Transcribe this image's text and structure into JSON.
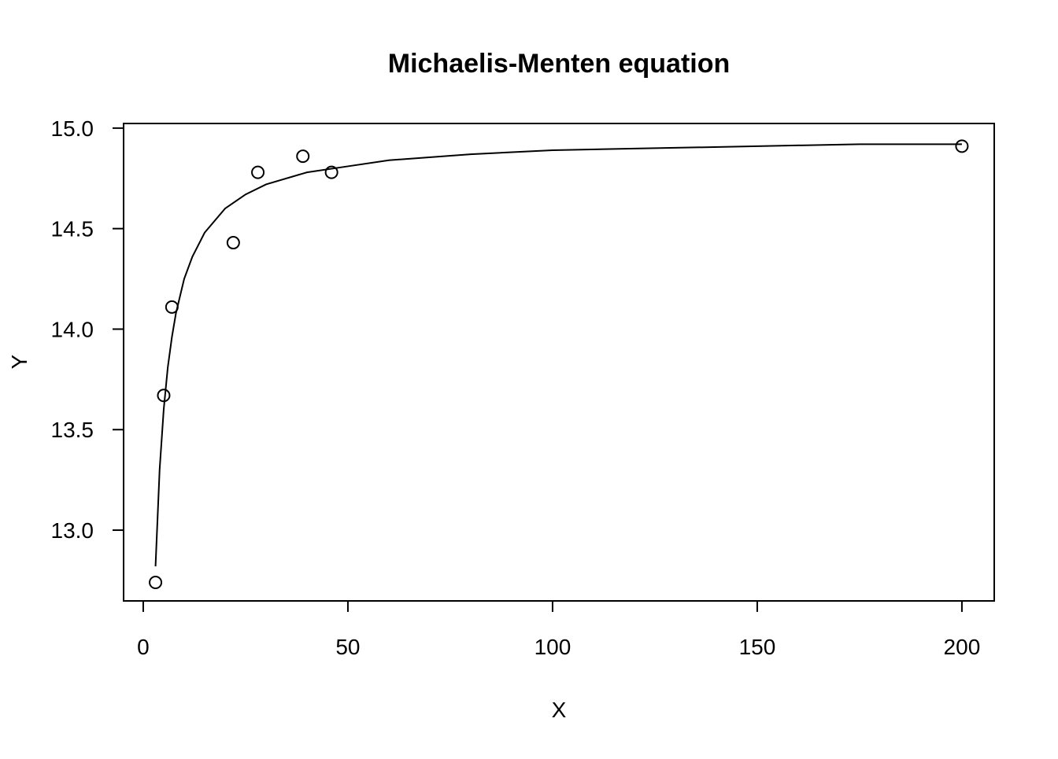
{
  "chart_data": {
    "type": "scatter",
    "title": "Michaelis-Menten equation",
    "x_label": "X",
    "y_label": "Y",
    "xlim": [
      -4.8,
      207.9
    ],
    "ylim": [
      12.648,
      15.023
    ],
    "xticks": [
      0,
      50,
      100,
      150,
      200
    ],
    "yticks": [
      {
        "value": 13,
        "label": "13.0"
      },
      13.5,
      {
        "value": 14,
        "label": "14.0"
      },
      14.5,
      {
        "value": 15,
        "label": "15.0"
      }
    ],
    "series": [
      {
        "type": "scatter",
        "color": "#000000",
        "x": [
          3,
          5,
          7,
          22,
          28,
          39,
          46,
          200
        ],
        "values": [
          12.74,
          13.67,
          14.11,
          14.43,
          14.78,
          14.86,
          14.78,
          14.91
        ]
      },
      {
        "type": "line",
        "color": "#000000",
        "x": [
          3,
          4,
          5,
          6,
          7,
          8,
          10,
          12,
          15,
          20,
          25,
          30,
          40,
          50,
          60,
          80,
          100,
          125,
          150,
          175,
          200
        ],
        "values": [
          12.82,
          13.3,
          13.6,
          13.81,
          13.96,
          14.08,
          14.25,
          14.36,
          14.48,
          14.6,
          14.67,
          14.72,
          14.78,
          14.81,
          14.84,
          14.87,
          14.89,
          14.9,
          14.91,
          14.92,
          14.92
        ]
      }
    ]
  }
}
